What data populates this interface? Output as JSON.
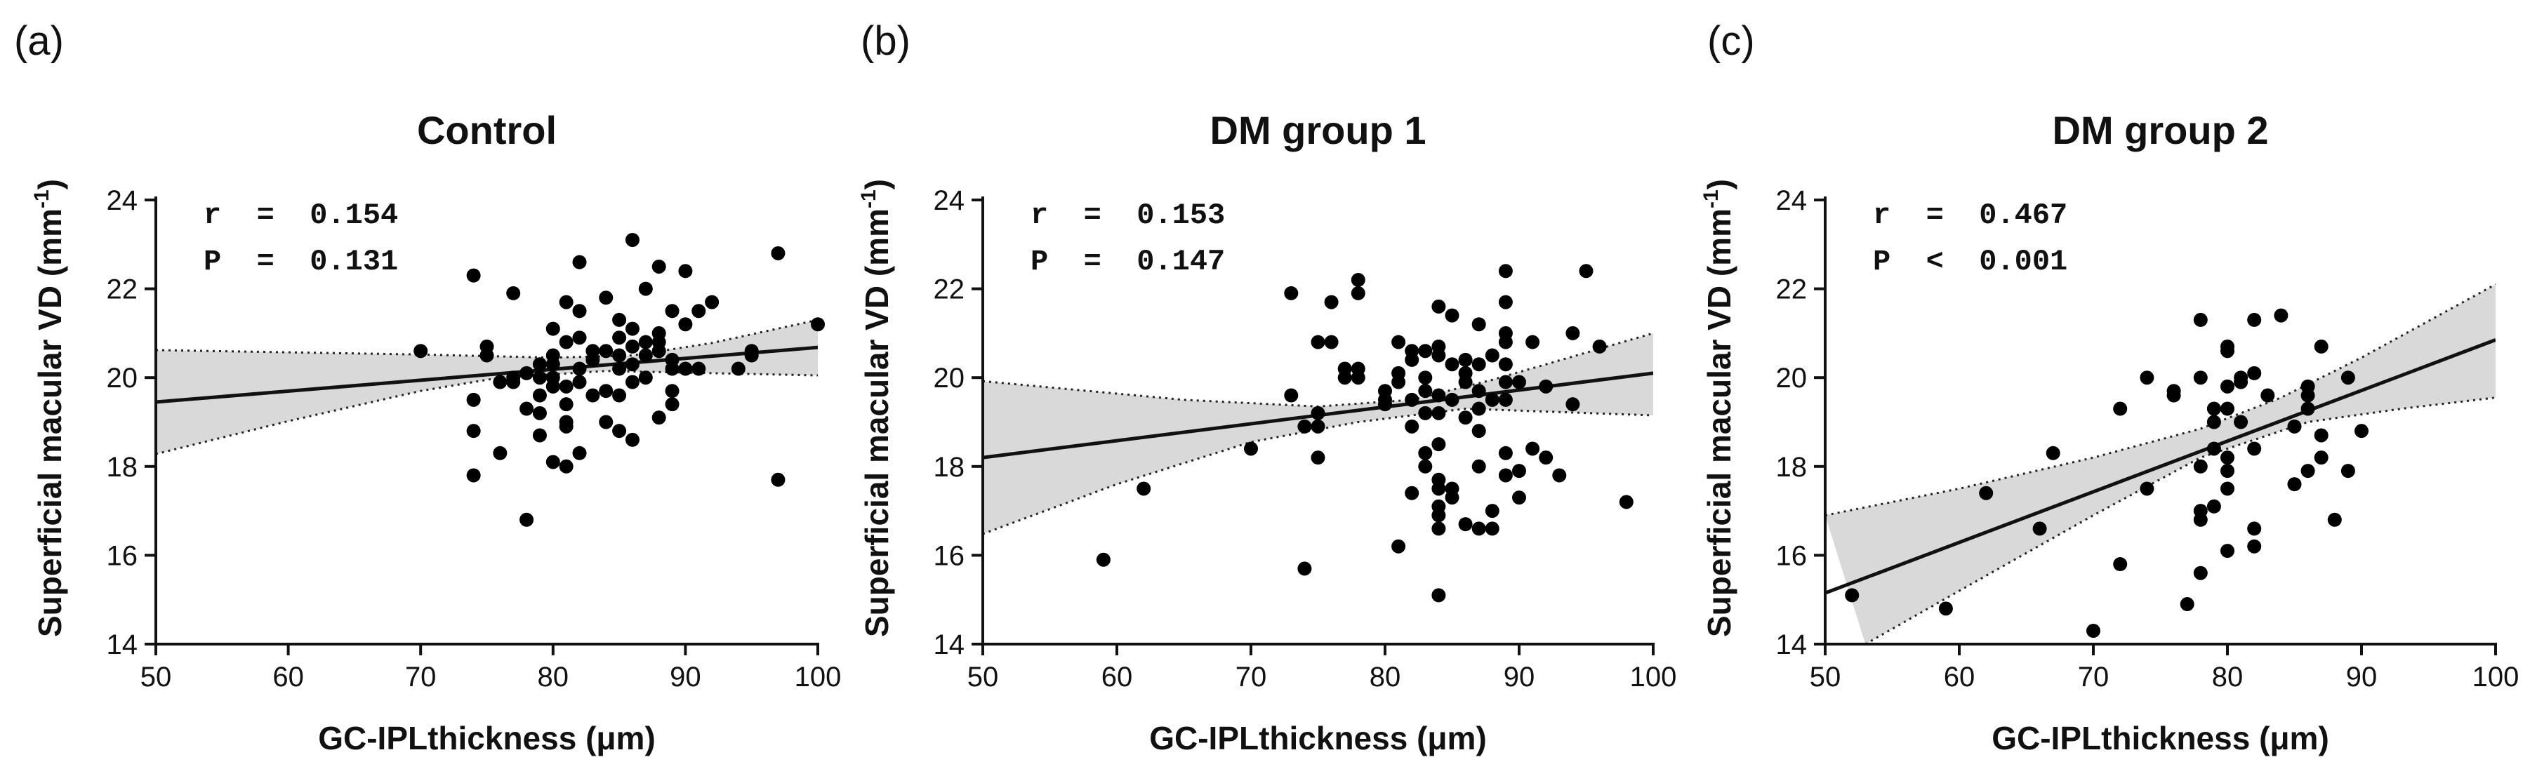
{
  "figure": {
    "axis_ylabel_prefix": "Superficial macular VD (mm",
    "axis_ylabel_exp": "-1",
    "axis_ylabel_suffix": ")"
  },
  "chart_data": [
    {
      "type": "scatter",
      "panel_label": "(a)",
      "title": "Control",
      "xlabel": "GC-IPLthickness (μm)",
      "ylabel": "Superficial macular VD (mm-1)",
      "xlim": [
        50,
        100
      ],
      "ylim": [
        14,
        24
      ],
      "xticks": [
        "50",
        "60",
        "70",
        "80",
        "90",
        "100"
      ],
      "yticks": [
        "14",
        "16",
        "18",
        "20",
        "22",
        "24"
      ],
      "stats": [
        "r  =  0.154",
        "P  =  0.131"
      ],
      "regression": {
        "x": [
          50,
          100
        ],
        "y": [
          19.45,
          20.68
        ]
      },
      "ci_upper": [
        [
          50,
          20.62
        ],
        [
          70,
          20.52
        ],
        [
          80,
          20.45
        ],
        [
          86,
          20.5
        ],
        [
          92,
          20.78
        ],
        [
          100,
          21.3
        ]
      ],
      "ci_lower": [
        [
          50,
          18.28
        ],
        [
          60,
          19.02
        ],
        [
          70,
          19.7
        ],
        [
          76,
          20.0
        ],
        [
          84,
          20.15
        ],
        [
          100,
          20.05
        ]
      ],
      "points": [
        [
          70,
          20.6
        ],
        [
          74,
          22.3
        ],
        [
          74,
          18.8
        ],
        [
          74,
          17.8
        ],
        [
          74,
          19.5
        ],
        [
          75,
          20.5
        ],
        [
          75,
          20.7
        ],
        [
          76,
          19.9
        ],
        [
          76,
          18.3
        ],
        [
          77,
          21.9
        ],
        [
          77,
          20.0
        ],
        [
          77,
          19.9
        ],
        [
          78,
          16.8
        ],
        [
          78,
          20.1
        ],
        [
          78,
          19.3
        ],
        [
          79,
          19.6
        ],
        [
          79,
          20.0
        ],
        [
          79,
          20.3
        ],
        [
          79,
          19.2
        ],
        [
          79,
          18.7
        ],
        [
          80,
          20.3
        ],
        [
          80,
          20.5
        ],
        [
          80,
          20.0
        ],
        [
          80,
          19.8
        ],
        [
          80,
          18.1
        ],
        [
          80,
          21.1
        ],
        [
          81,
          21.7
        ],
        [
          81,
          20.8
        ],
        [
          81,
          19.8
        ],
        [
          81,
          19.4
        ],
        [
          81,
          19.0
        ],
        [
          81,
          18.9
        ],
        [
          81,
          18.0
        ],
        [
          82,
          22.6
        ],
        [
          82,
          20.9
        ],
        [
          82,
          20.2
        ],
        [
          82,
          19.9
        ],
        [
          82,
          18.3
        ],
        [
          82,
          21.5
        ],
        [
          83,
          20.6
        ],
        [
          83,
          19.6
        ],
        [
          83,
          20.4
        ],
        [
          84,
          21.8
        ],
        [
          84,
          20.6
        ],
        [
          84,
          19.7
        ],
        [
          84,
          19.0
        ],
        [
          85,
          21.3
        ],
        [
          85,
          20.9
        ],
        [
          85,
          20.5
        ],
        [
          85,
          20.2
        ],
        [
          85,
          19.6
        ],
        [
          85,
          18.8
        ],
        [
          86,
          23.1
        ],
        [
          86,
          21.1
        ],
        [
          86,
          20.7
        ],
        [
          86,
          20.3
        ],
        [
          86,
          19.9
        ],
        [
          86,
          18.6
        ],
        [
          87,
          22.0
        ],
        [
          87,
          20.8
        ],
        [
          87,
          20.5
        ],
        [
          87,
          20.0
        ],
        [
          88,
          22.5
        ],
        [
          88,
          21.0
        ],
        [
          88,
          20.8
        ],
        [
          88,
          20.6
        ],
        [
          88,
          19.1
        ],
        [
          89,
          21.5
        ],
        [
          89,
          20.4
        ],
        [
          89,
          20.2
        ],
        [
          89,
          19.7
        ],
        [
          89,
          19.4
        ],
        [
          90,
          22.4
        ],
        [
          90,
          21.2
        ],
        [
          90,
          20.2
        ],
        [
          91,
          21.5
        ],
        [
          91,
          20.2
        ],
        [
          92,
          21.7
        ],
        [
          94,
          20.2
        ],
        [
          95,
          20.6
        ],
        [
          95,
          20.5
        ],
        [
          97,
          22.8
        ],
        [
          97,
          17.7
        ],
        [
          100,
          21.2
        ]
      ]
    },
    {
      "type": "scatter",
      "panel_label": "(b)",
      "title": "DM group 1",
      "xlabel": "GC-IPLthickness (μm)",
      "ylabel": "Superficial macular VD (mm-1)",
      "xlim": [
        50,
        100
      ],
      "ylim": [
        14,
        24
      ],
      "xticks": [
        "50",
        "60",
        "70",
        "80",
        "90",
        "100"
      ],
      "yticks": [
        "14",
        "16",
        "18",
        "20",
        "22",
        "24"
      ],
      "stats": [
        "r  =  0.153",
        "P  =  0.147"
      ],
      "regression": {
        "x": [
          50,
          100
        ],
        "y": [
          18.2,
          20.1
        ]
      },
      "ci_upper": [
        [
          50,
          19.92
        ],
        [
          65,
          19.5
        ],
        [
          75,
          19.35
        ],
        [
          82,
          19.5
        ],
        [
          88,
          19.95
        ],
        [
          100,
          21.0
        ]
      ],
      "ci_lower": [
        [
          50,
          16.48
        ],
        [
          60,
          17.6
        ],
        [
          70,
          18.55
        ],
        [
          78,
          19.0
        ],
        [
          86,
          19.3
        ],
        [
          100,
          19.15
        ]
      ],
      "points": [
        [
          59,
          15.9
        ],
        [
          62,
          17.5
        ],
        [
          70,
          18.4
        ],
        [
          73,
          21.9
        ],
        [
          73,
          19.6
        ],
        [
          74,
          15.7
        ],
        [
          74,
          18.9
        ],
        [
          75,
          20.8
        ],
        [
          75,
          19.2
        ],
        [
          75,
          18.9
        ],
        [
          75,
          18.2
        ],
        [
          76,
          21.7
        ],
        [
          76,
          20.8
        ],
        [
          77,
          20.2
        ],
        [
          77,
          20.0
        ],
        [
          78,
          22.2
        ],
        [
          78,
          21.9
        ],
        [
          78,
          20.2
        ],
        [
          78,
          20.0
        ],
        [
          80,
          19.7
        ],
        [
          80,
          19.5
        ],
        [
          80,
          19.4
        ],
        [
          81,
          20.8
        ],
        [
          81,
          20.1
        ],
        [
          81,
          19.9
        ],
        [
          81,
          16.2
        ],
        [
          82,
          20.6
        ],
        [
          82,
          20.4
        ],
        [
          82,
          19.5
        ],
        [
          82,
          18.9
        ],
        [
          82,
          17.4
        ],
        [
          83,
          20.6
        ],
        [
          83,
          20.0
        ],
        [
          83,
          19.7
        ],
        [
          83,
          19.2
        ],
        [
          83,
          18.3
        ],
        [
          83,
          18.0
        ],
        [
          84,
          21.6
        ],
        [
          84,
          20.7
        ],
        [
          84,
          20.5
        ],
        [
          84,
          19.6
        ],
        [
          84,
          19.2
        ],
        [
          84,
          18.5
        ],
        [
          84,
          17.7
        ],
        [
          84,
          17.5
        ],
        [
          84,
          17.1
        ],
        [
          84,
          16.9
        ],
        [
          84,
          16.6
        ],
        [
          84,
          15.1
        ],
        [
          85,
          21.4
        ],
        [
          85,
          20.3
        ],
        [
          85,
          19.5
        ],
        [
          85,
          17.5
        ],
        [
          85,
          17.3
        ],
        [
          86,
          20.4
        ],
        [
          86,
          20.1
        ],
        [
          86,
          19.9
        ],
        [
          86,
          19.1
        ],
        [
          86,
          16.7
        ],
        [
          87,
          21.2
        ],
        [
          87,
          20.3
        ],
        [
          87,
          19.7
        ],
        [
          87,
          19.3
        ],
        [
          87,
          18.8
        ],
        [
          87,
          18.0
        ],
        [
          87,
          16.6
        ],
        [
          88,
          20.5
        ],
        [
          88,
          19.5
        ],
        [
          88,
          17.0
        ],
        [
          88,
          16.6
        ],
        [
          89,
          22.4
        ],
        [
          89,
          21.7
        ],
        [
          89,
          21.0
        ],
        [
          89,
          20.8
        ],
        [
          89,
          20.3
        ],
        [
          89,
          19.9
        ],
        [
          89,
          19.5
        ],
        [
          89,
          18.3
        ],
        [
          89,
          17.8
        ],
        [
          90,
          19.9
        ],
        [
          90,
          17.9
        ],
        [
          90,
          17.3
        ],
        [
          91,
          20.8
        ],
        [
          91,
          18.4
        ],
        [
          92,
          19.8
        ],
        [
          92,
          18.2
        ],
        [
          93,
          17.8
        ],
        [
          94,
          21.0
        ],
        [
          94,
          19.4
        ],
        [
          95,
          22.4
        ],
        [
          96,
          20.7
        ],
        [
          98,
          17.2
        ]
      ]
    },
    {
      "type": "scatter",
      "panel_label": "(c)",
      "title": "DM group 2",
      "xlabel": "GC-IPLthickness (μm)",
      "ylabel": "Superficial macular VD (mm-1)",
      "xlim": [
        50,
        100
      ],
      "ylim": [
        14,
        24
      ],
      "xticks": [
        "50",
        "60",
        "70",
        "80",
        "90",
        "100"
      ],
      "yticks": [
        "14",
        "16",
        "18",
        "20",
        "22",
        "24"
      ],
      "stats": [
        "r  =  0.467",
        "P  <  0.001"
      ],
      "regression": {
        "x": [
          50,
          100
        ],
        "y": [
          15.15,
          20.85
        ]
      },
      "ci_upper": [
        [
          50,
          16.9
        ],
        [
          60,
          17.5
        ],
        [
          70,
          18.2
        ],
        [
          78,
          18.85
        ],
        [
          84,
          19.55
        ],
        [
          90,
          20.45
        ],
        [
          100,
          22.1
        ]
      ],
      "ci_lower": [
        [
          53,
          14.0
        ],
        [
          60,
          15.2
        ],
        [
          70,
          16.9
        ],
        [
          78,
          18.2
        ],
        [
          86,
          19.0
        ],
        [
          93,
          19.3
        ],
        [
          100,
          19.55
        ]
      ],
      "points": [
        [
          52,
          15.1
        ],
        [
          59,
          14.8
        ],
        [
          62,
          17.4
        ],
        [
          66,
          16.6
        ],
        [
          67,
          18.3
        ],
        [
          70,
          14.3
        ],
        [
          72,
          19.3
        ],
        [
          72,
          15.8
        ],
        [
          74,
          20.0
        ],
        [
          74,
          17.5
        ],
        [
          76,
          19.7
        ],
        [
          76,
          19.6
        ],
        [
          77,
          14.9
        ],
        [
          78,
          21.3
        ],
        [
          78,
          20.0
        ],
        [
          78,
          18.0
        ],
        [
          78,
          17.0
        ],
        [
          78,
          16.8
        ],
        [
          78,
          15.6
        ],
        [
          79,
          19.3
        ],
        [
          79,
          19.0
        ],
        [
          79,
          18.4
        ],
        [
          79,
          17.1
        ],
        [
          80,
          20.7
        ],
        [
          80,
          20.6
        ],
        [
          80,
          19.8
        ],
        [
          80,
          19.3
        ],
        [
          80,
          18.2
        ],
        [
          80,
          17.9
        ],
        [
          80,
          17.5
        ],
        [
          80,
          16.1
        ],
        [
          81,
          20.0
        ],
        [
          81,
          19.9
        ],
        [
          81,
          19.0
        ],
        [
          82,
          21.3
        ],
        [
          82,
          20.1
        ],
        [
          82,
          18.4
        ],
        [
          82,
          16.6
        ],
        [
          82,
          16.2
        ],
        [
          83,
          19.6
        ],
        [
          84,
          21.4
        ],
        [
          85,
          18.9
        ],
        [
          85,
          17.6
        ],
        [
          86,
          19.8
        ],
        [
          86,
          19.6
        ],
        [
          86,
          19.3
        ],
        [
          86,
          17.9
        ],
        [
          87,
          20.7
        ],
        [
          87,
          18.7
        ],
        [
          87,
          18.2
        ],
        [
          88,
          16.8
        ],
        [
          89,
          20.0
        ],
        [
          89,
          17.9
        ],
        [
          90,
          18.8
        ]
      ]
    }
  ]
}
